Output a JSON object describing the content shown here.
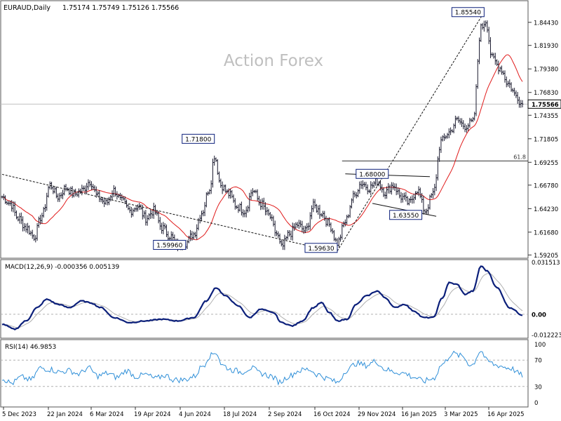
{
  "header": {
    "symbol": "EURAUD,Daily",
    "ohlc": "1.75174 1.75749 1.75126 1.75566"
  },
  "watermark": "Action Forex",
  "colors": {
    "bar": "#1a1a2e",
    "ma": "#e01b1b",
    "macd": "#0b1f7a",
    "signal": "#b0b0b0",
    "rsi": "#2f8fd8",
    "grid": "#bdbdbd",
    "label_border": "#0b1f7a"
  },
  "chart_data": [
    {
      "type": "bar",
      "name": "price",
      "ylim": [
        1.5893,
        1.867
      ],
      "yticks": [
        "1.84430",
        "1.81930",
        "1.79380",
        "1.76830",
        "1.74355",
        "1.71805",
        "1.69255",
        "1.66780",
        "1.64230",
        "1.61680",
        "1.59205"
      ],
      "current_price": "1.75566",
      "xticks": [
        "5 Dec 2023",
        "22 Jan 2024",
        "6 Mar 2024",
        "19 Apr 2024",
        "4 Jun 2024",
        "18 Jul 2024",
        "2 Sep 2024",
        "16 Oct 2024",
        "29 Nov 2024",
        "16 Jan 2025",
        "3 Mar 2025",
        "16 Apr 2025"
      ],
      "anchors": [
        [
          0,
          1.655
        ],
        [
          5,
          1.648
        ],
        [
          10,
          1.632
        ],
        [
          15,
          1.622
        ],
        [
          20,
          1.612
        ],
        [
          25,
          1.635
        ],
        [
          30,
          1.668
        ],
        [
          35,
          1.655
        ],
        [
          40,
          1.665
        ],
        [
          45,
          1.658
        ],
        [
          50,
          1.662
        ],
        [
          55,
          1.672
        ],
        [
          60,
          1.655
        ],
        [
          65,
          1.648
        ],
        [
          70,
          1.662
        ],
        [
          75,
          1.65
        ],
        [
          80,
          1.64
        ],
        [
          85,
          1.645
        ],
        [
          90,
          1.632
        ],
        [
          95,
          1.64
        ],
        [
          100,
          1.622
        ],
        [
          105,
          1.613
        ],
        [
          110,
          1.602
        ],
        [
          115,
          1.605
        ],
        [
          120,
          1.615
        ],
        [
          125,
          1.638
        ],
        [
          130,
          1.665
        ],
        [
          133,
          1.7
        ],
        [
          137,
          1.668
        ],
        [
          142,
          1.658
        ],
        [
          147,
          1.645
        ],
        [
          152,
          1.64
        ],
        [
          157,
          1.662
        ],
        [
          162,
          1.648
        ],
        [
          167,
          1.635
        ],
        [
          172,
          1.615
        ],
        [
          175,
          1.6
        ],
        [
          180,
          1.615
        ],
        [
          185,
          1.625
        ],
        [
          190,
          1.618
        ],
        [
          195,
          1.645
        ],
        [
          200,
          1.638
        ],
        [
          205,
          1.625
        ],
        [
          210,
          1.605
        ],
        [
          215,
          1.628
        ],
        [
          220,
          1.655
        ],
        [
          225,
          1.67
        ],
        [
          230,
          1.665
        ],
        [
          235,
          1.672
        ],
        [
          240,
          1.66
        ],
        [
          245,
          1.668
        ],
        [
          250,
          1.655
        ],
        [
          255,
          1.648
        ],
        [
          260,
          1.663
        ],
        [
          265,
          1.64
        ],
        [
          270,
          1.658
        ],
        [
          275,
          1.715
        ],
        [
          280,
          1.725
        ],
        [
          285,
          1.738
        ],
        [
          290,
          1.732
        ],
        [
          295,
          1.736
        ],
        [
          300,
          1.838
        ],
        [
          303,
          1.846
        ],
        [
          307,
          1.805
        ],
        [
          312,
          1.795
        ],
        [
          317,
          1.778
        ],
        [
          322,
          1.765
        ],
        [
          326,
          1.755
        ]
      ],
      "annotations": [
        {
          "label": "1.85540",
          "x": 302,
          "y": 1.8554
        },
        {
          "label": "1.71800",
          "x": 133,
          "y": 1.718
        },
        {
          "label": "1.68000",
          "x": 242,
          "y": 1.68
        },
        {
          "label": "1.63550",
          "x": 263,
          "y": 1.6355
        },
        {
          "label": "1.59960",
          "x": 115,
          "y": 1.5996
        },
        {
          "label": "1.59630",
          "x": 210,
          "y": 1.5963
        }
      ],
      "fib_level": {
        "label": "61.8",
        "y": 1.694,
        "x_start": 213
      },
      "trendlines": [
        {
          "x1": 0,
          "y1": 1.6795,
          "x2": 206,
          "y2": 1.5963
        },
        {
          "x1": 210,
          "y1": 1.5963,
          "x2": 302,
          "y2": 1.8554
        },
        {
          "x1": 215,
          "y1": 1.68,
          "x2": 268,
          "y2": 1.677
        },
        {
          "x1": 232,
          "y1": 1.648,
          "x2": 272,
          "y2": 1.634
        }
      ]
    },
    {
      "type": "line",
      "name": "macd",
      "title": "MACD(12,26,9) -0.000356 0.005139",
      "ylim": [
        -0.014,
        0.0325
      ],
      "yticks": [
        "0.031513",
        "0.00",
        "-0.012223"
      ],
      "zero_label": "0.00",
      "anchors": [
        [
          0,
          -0.006
        ],
        [
          8,
          -0.009
        ],
        [
          15,
          -0.004
        ],
        [
          22,
          0.004
        ],
        [
          28,
          0.009
        ],
        [
          35,
          0.006
        ],
        [
          42,
          0.004
        ],
        [
          50,
          0.008
        ],
        [
          55,
          0.007
        ],
        [
          62,
          0.004
        ],
        [
          70,
          -0.002
        ],
        [
          80,
          -0.005
        ],
        [
          90,
          -0.004
        ],
        [
          100,
          -0.003
        ],
        [
          110,
          -0.004
        ],
        [
          120,
          -0.002
        ],
        [
          128,
          0.008
        ],
        [
          134,
          0.016
        ],
        [
          140,
          0.011
        ],
        [
          148,
          0.005
        ],
        [
          155,
          -0.002
        ],
        [
          162,
          0.003
        ],
        [
          170,
          0.001
        ],
        [
          175,
          -0.005
        ],
        [
          182,
          -0.007
        ],
        [
          188,
          -0.004
        ],
        [
          195,
          0.004
        ],
        [
          200,
          0.007
        ],
        [
          205,
          0.001
        ],
        [
          210,
          -0.004
        ],
        [
          216,
          -0.003
        ],
        [
          222,
          0.006
        ],
        [
          228,
          0.011
        ],
        [
          235,
          0.014
        ],
        [
          240,
          0.01
        ],
        [
          246,
          0.004
        ],
        [
          252,
          0.006
        ],
        [
          258,
          0.002
        ],
        [
          264,
          -0.002
        ],
        [
          270,
          -0.002
        ],
        [
          276,
          0.01
        ],
        [
          280,
          0.019
        ],
        [
          285,
          0.018
        ],
        [
          290,
          0.012
        ],
        [
          295,
          0.014
        ],
        [
          300,
          0.029
        ],
        [
          304,
          0.026
        ],
        [
          310,
          0.016
        ],
        [
          318,
          0.004
        ],
        [
          326,
          -0.0004
        ]
      ]
    },
    {
      "type": "line",
      "name": "rsi",
      "title": "RSI(14) 46.9853",
      "ylim": [
        0,
        100
      ],
      "yticks": [
        "100",
        "70",
        "30",
        "0"
      ],
      "levels": [
        70,
        30
      ],
      "anchors": [
        [
          0,
          42
        ],
        [
          6,
          35
        ],
        [
          12,
          44
        ],
        [
          18,
          40
        ],
        [
          24,
          58
        ],
        [
          30,
          56
        ],
        [
          36,
          52
        ],
        [
          42,
          54
        ],
        [
          48,
          49
        ],
        [
          54,
          58
        ],
        [
          60,
          46
        ],
        [
          66,
          50
        ],
        [
          72,
          44
        ],
        [
          78,
          54
        ],
        [
          84,
          45
        ],
        [
          90,
          48
        ],
        [
          96,
          42
        ],
        [
          102,
          47
        ],
        [
          108,
          40
        ],
        [
          114,
          40
        ],
        [
          120,
          45
        ],
        [
          126,
          62
        ],
        [
          130,
          76
        ],
        [
          134,
          82
        ],
        [
          138,
          62
        ],
        [
          144,
          55
        ],
        [
          150,
          52
        ],
        [
          156,
          58
        ],
        [
          162,
          50
        ],
        [
          168,
          46
        ],
        [
          174,
          37
        ],
        [
          180,
          46
        ],
        [
          186,
          54
        ],
        [
          192,
          56
        ],
        [
          198,
          48
        ],
        [
          204,
          42
        ],
        [
          210,
          36
        ],
        [
          216,
          55
        ],
        [
          222,
          65
        ],
        [
          228,
          62
        ],
        [
          234,
          68
        ],
        [
          240,
          56
        ],
        [
          246,
          52
        ],
        [
          252,
          50
        ],
        [
          258,
          44
        ],
        [
          264,
          38
        ],
        [
          270,
          42
        ],
        [
          276,
          64
        ],
        [
          282,
          80
        ],
        [
          288,
          76
        ],
        [
          294,
          62
        ],
        [
          300,
          84
        ],
        [
          304,
          68
        ],
        [
          310,
          62
        ],
        [
          318,
          58
        ],
        [
          326,
          47
        ]
      ]
    }
  ]
}
